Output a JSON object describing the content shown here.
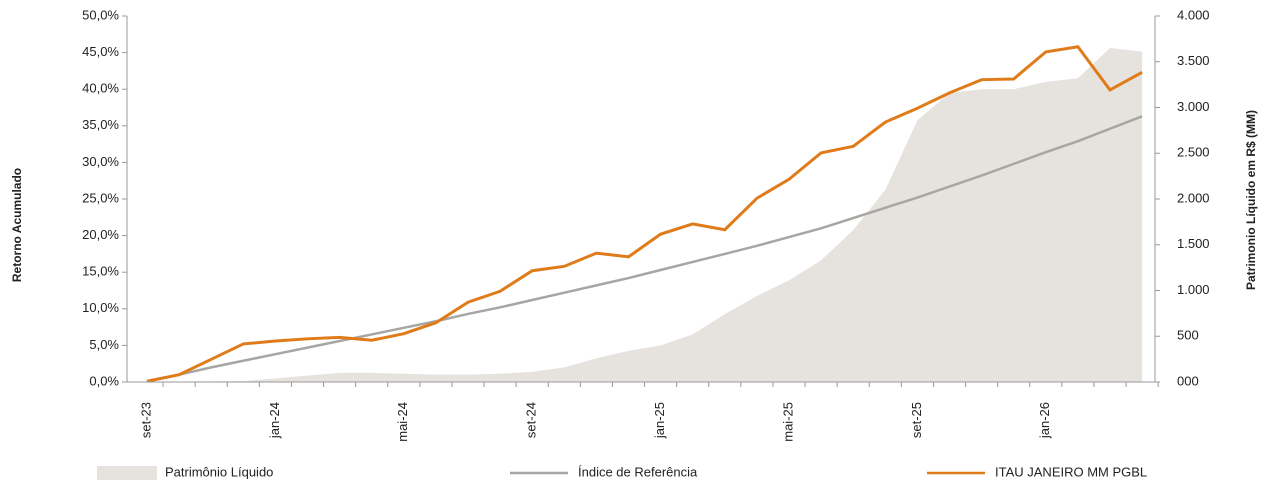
{
  "chart_data": {
    "type": "line",
    "categories": [
      "set-23",
      null,
      null,
      null,
      "jan-24",
      null,
      null,
      null,
      "mai-24",
      null,
      null,
      null,
      "set-24",
      null,
      null,
      null,
      "jan-25",
      null,
      null,
      null,
      "mai-25",
      null,
      null,
      null,
      "set-25",
      null,
      null,
      null,
      "jan-26",
      null,
      null,
      null
    ],
    "series": [
      {
        "name": "Patrimônio Líquido",
        "type": "area",
        "axis": "y2",
        "color": "#e6e3df",
        "values": [
          0,
          5,
          8,
          10,
          40,
          70,
          100,
          100,
          90,
          80,
          80,
          90,
          110,
          160,
          260,
          340,
          400,
          520,
          740,
          940,
          1110,
          1330,
          1660,
          2100,
          2860,
          3160,
          3200,
          3200,
          3280,
          3320,
          3650,
          3610
        ]
      },
      {
        "name": "Índice de Referência",
        "type": "line",
        "color": "#a8a6a3",
        "values": [
          0.1,
          1.0,
          2.0,
          2.9,
          3.8,
          4.7,
          5.6,
          6.5,
          7.4,
          8.3,
          9.3,
          10.2,
          11.2,
          12.2,
          13.2,
          14.2,
          15.3,
          16.4,
          17.5,
          18.6,
          19.8,
          21.0,
          22.4,
          23.8,
          25.2,
          26.7,
          28.2,
          29.8,
          31.4,
          32.9,
          34.6,
          36.3
        ]
      },
      {
        "name": "ITAU JANEIRO MM PGBL",
        "type": "line",
        "color": "#e07b1a",
        "values": [
          0.1,
          1.0,
          3.1,
          5.2,
          5.6,
          5.9,
          6.1,
          5.7,
          6.6,
          8.1,
          10.9,
          12.4,
          15.2,
          15.8,
          17.6,
          17.1,
          20.2,
          21.6,
          20.8,
          25.1,
          27.7,
          31.3,
          32.2,
          35.5,
          37.4,
          39.5,
          41.3,
          41.4,
          45.1,
          45.8,
          39.9,
          42.3
        ]
      }
    ],
    "y_label": "Retorno Acumulado",
    "y2_label": "Patrimonio Líquido em R$ (MM)",
    "ylim": [
      0,
      50
    ],
    "yticks": [
      {
        "value": 0,
        "label": "0,0%"
      },
      {
        "value": 5,
        "label": "5,0%"
      },
      {
        "value": 10,
        "label": "10,0%"
      },
      {
        "value": 15,
        "label": "15,0%"
      },
      {
        "value": 20,
        "label": "20,0%"
      },
      {
        "value": 25,
        "label": "25,0%"
      },
      {
        "value": 30,
        "label": "30,0%"
      },
      {
        "value": 35,
        "label": "35,0%"
      },
      {
        "value": 40,
        "label": "40,0%"
      },
      {
        "value": 45,
        "label": "45,0%"
      },
      {
        "value": 50,
        "label": "50,0%"
      }
    ],
    "y2lim": [
      0,
      4000
    ],
    "y2ticks": [
      {
        "value": 0,
        "label": "000"
      },
      500,
      {
        "value": 1000,
        "label": "1.000"
      },
      {
        "value": 1500,
        "label": "1.500"
      },
      {
        "value": 2000,
        "label": "2.000"
      },
      {
        "value": 2500,
        "label": "2.500"
      },
      {
        "value": 3000,
        "label": "3.000"
      },
      {
        "value": 3500,
        "label": "3.500"
      },
      {
        "value": 4000,
        "label": "4.000"
      }
    ],
    "legend": "bottom"
  }
}
